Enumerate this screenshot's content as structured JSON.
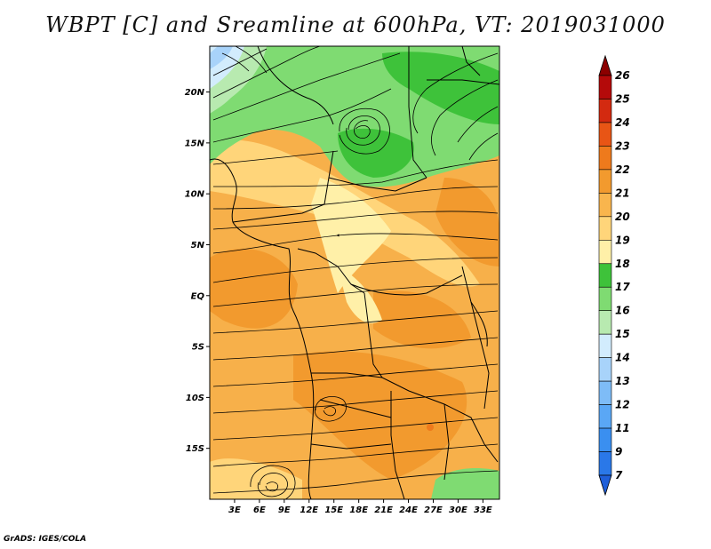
{
  "title": "WBPT [C] and Sreamline at 600hPa, VT: 2019031000",
  "credit": "GrADS: IGES/COLA",
  "map": {
    "type": "filled-contour-streamline",
    "variable": "WBPT",
    "units": "C",
    "level": "600hPa",
    "valid_time": "2019031000",
    "lon_range": [
      0,
      35
    ],
    "lat_range": [
      -20,
      24.5
    ],
    "lon_ticks": [
      "3E",
      "6E",
      "9E",
      "12E",
      "15E",
      "18E",
      "21E",
      "24E",
      "27E",
      "30E",
      "33E"
    ],
    "lat_ticks": [
      "20N",
      "15N",
      "10N",
      "5N",
      "EQ",
      "5S",
      "10S",
      "15S"
    ]
  },
  "colorbar": {
    "levels": [
      "7",
      "9",
      "11",
      "12",
      "13",
      "14",
      "15",
      "16",
      "17",
      "18",
      "19",
      "20",
      "21",
      "22",
      "23",
      "24",
      "25",
      "26"
    ],
    "colors": [
      "#1f5fd9",
      "#2a78e8",
      "#3a8ff0",
      "#5aa7f5",
      "#7ebcf7",
      "#a8d3fa",
      "#d2ecfd",
      "#b8eab0",
      "#7fdb72",
      "#3ec23a",
      "#fff0a8",
      "#ffd57a",
      "#f9b54d",
      "#f29a2e",
      "#ee7a1c",
      "#e85515",
      "#d32a10",
      "#b40a0a",
      "#8c0000"
    ]
  }
}
